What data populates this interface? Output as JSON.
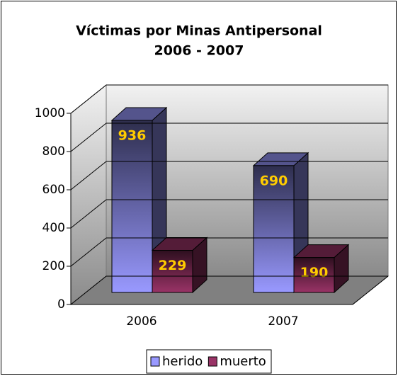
{
  "chart_data": {
    "type": "bar3d",
    "title": "Víctimas por Minas Antipersonal",
    "subtitle": "2006 - 2007",
    "categories": [
      "2006",
      "2007"
    ],
    "series": [
      {
        "name": "herido",
        "color": "#9999ff",
        "values": [
          936,
          690
        ]
      },
      {
        "name": "muerto",
        "color": "#993366",
        "values": [
          229,
          190
        ]
      }
    ],
    "ylim": [
      0,
      1000
    ],
    "yticks": [
      0,
      200,
      400,
      600,
      800,
      1000
    ],
    "grid": true,
    "legend": "bottom",
    "value_label_color": "#ffcc00"
  }
}
